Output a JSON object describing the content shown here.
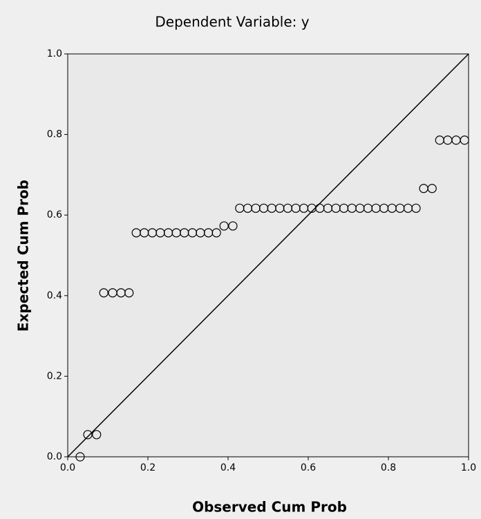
{
  "chart_data": {
    "type": "scatter",
    "title": "Dependent Variable: y",
    "x_label": "Observed Cum Prob",
    "y_label": "Expected Cum Prob",
    "series": [
      {
        "color": "#000000",
        "x": [
          0.031,
          0.05,
          0.072,
          0.09,
          0.112,
          0.133,
          0.153,
          0.171,
          0.191,
          0.211,
          0.231,
          0.251,
          0.271,
          0.291,
          0.311,
          0.331,
          0.351,
          0.371,
          0.39,
          0.412,
          0.429,
          0.449,
          0.469,
          0.489,
          0.509,
          0.529,
          0.549,
          0.569,
          0.589,
          0.609,
          0.629,
          0.649,
          0.669,
          0.689,
          0.709,
          0.729,
          0.749,
          0.769,
          0.789,
          0.809,
          0.829,
          0.849,
          0.869,
          0.888,
          0.909,
          0.928,
          0.948,
          0.969,
          0.99
        ],
        "values": [
          0.0,
          0.055,
          0.055,
          0.407,
          0.407,
          0.407,
          0.407,
          0.556,
          0.556,
          0.556,
          0.556,
          0.556,
          0.556,
          0.556,
          0.556,
          0.556,
          0.556,
          0.556,
          0.573,
          0.573,
          0.617,
          0.617,
          0.617,
          0.617,
          0.617,
          0.617,
          0.617,
          0.617,
          0.617,
          0.617,
          0.617,
          0.617,
          0.617,
          0.617,
          0.617,
          0.617,
          0.617,
          0.617,
          0.617,
          0.617,
          0.617,
          0.617,
          0.617,
          0.666,
          0.666,
          0.786,
          0.786,
          0.786,
          0.786
        ]
      }
    ],
    "xlim": [
      0,
      1
    ],
    "ylim": [
      0,
      1
    ],
    "xticks": [
      {
        "value": 0,
        "label": "0.0"
      },
      0.2,
      0.4,
      0.6,
      0.8,
      {
        "value": 1,
        "label": "1.0"
      }
    ],
    "yticks": [
      {
        "value": 0,
        "label": "0.0"
      },
      0.2,
      0.4,
      0.6,
      0.8,
      {
        "value": 1,
        "label": "1.0"
      }
    ],
    "reference_line": true
  }
}
